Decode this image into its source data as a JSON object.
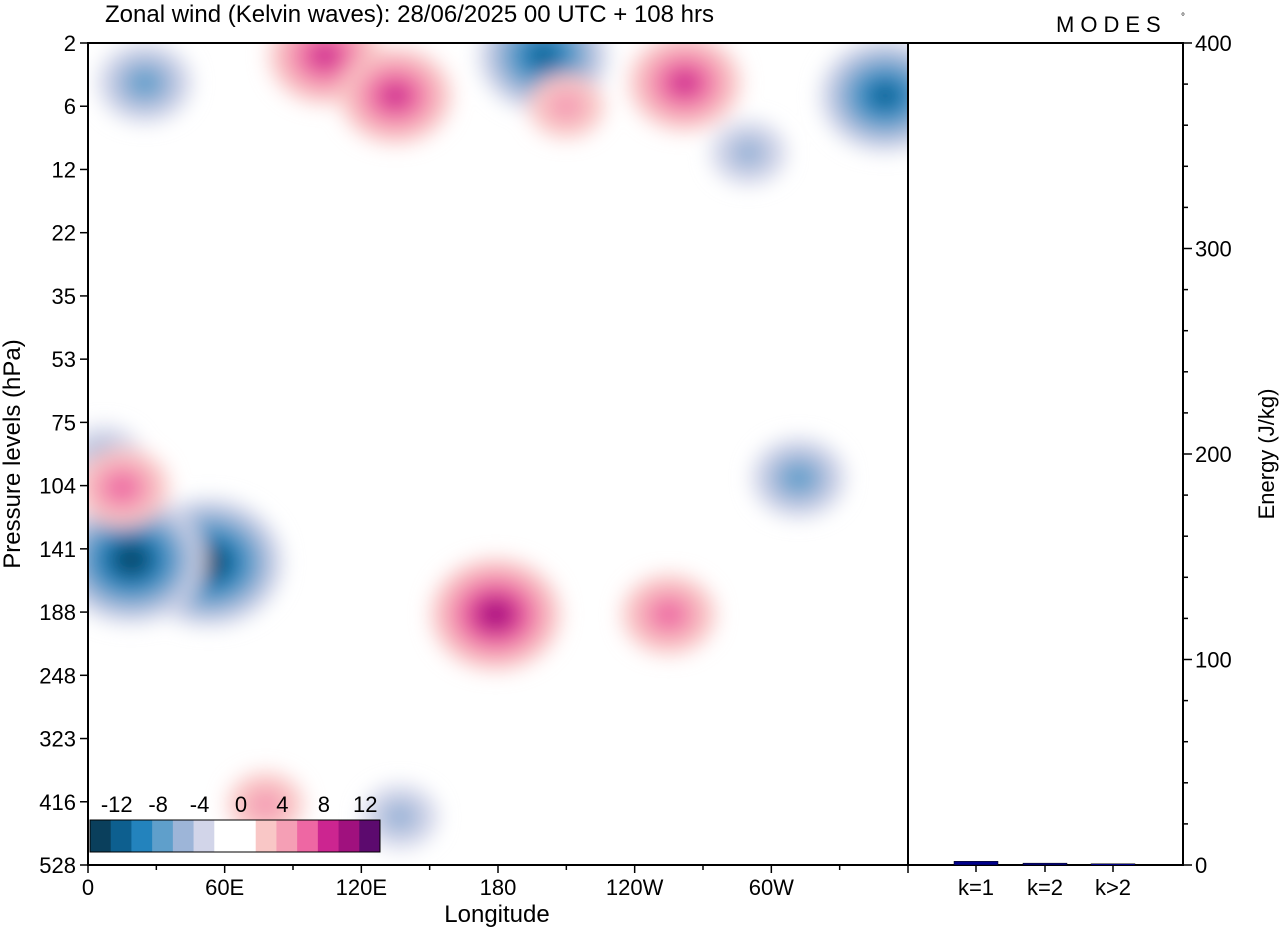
{
  "chart_data": [
    {
      "type": "heatmap",
      "title": "Zonal wind (Kelvin waves):  28/06/2025  00 UTC  + 108 hrs",
      "xlabel": "Longitude",
      "ylabel": "Pressure levels (hPa)",
      "x_ticks": [
        "0",
        "60E",
        "120E",
        "180",
        "120W",
        "60W"
      ],
      "y_ticks": [
        "2",
        "6",
        "12",
        "22",
        "35",
        "53",
        "75",
        "104",
        "141",
        "188",
        "248",
        "323",
        "416",
        "528"
      ],
      "colorbar": {
        "tick_labels": [
          "-12",
          "-8",
          "-4",
          "0",
          "4",
          "8",
          "12"
        ],
        "colors": [
          "#0a3f5c",
          "#0d5f8f",
          "#2383bd",
          "#5f9fcb",
          "#9db5d8",
          "#d2d5e9",
          "#ffffff",
          "#ffffff",
          "#f9c7c6",
          "#f59fb5",
          "#ee67a3",
          "#cc2590",
          "#a0117e",
          "#5c0a6e"
        ]
      },
      "features": [
        {
          "sign": "positive",
          "lon": 179,
          "p": 190,
          "peak": 10
        },
        {
          "sign": "negative",
          "lon": 53,
          "p": 150,
          "peak": -12
        },
        {
          "sign": "negative",
          "lon": 19,
          "p": 148,
          "peak": -12
        },
        {
          "sign": "positive",
          "lon": 255,
          "p": 190,
          "peak": 6
        },
        {
          "sign": "negative",
          "lon": 312,
          "p": 100,
          "peak": -6
        },
        {
          "sign": "positive",
          "lon": 78,
          "p": 420,
          "peak": 4
        },
        {
          "sign": "negative",
          "lon": 137,
          "p": 440,
          "peak": -3
        },
        {
          "sign": "negative",
          "lon": 7,
          "p": 90,
          "peak": -3
        },
        {
          "sign": "positive",
          "lon": 15,
          "p": 105,
          "peak": 5
        },
        {
          "sign": "negative",
          "lon": 200,
          "p": 2.5,
          "peak": -10
        },
        {
          "sign": "positive",
          "lon": 104,
          "p": 2.5,
          "peak": 8
        },
        {
          "sign": "positive",
          "lon": 135,
          "p": 5,
          "peak": 8
        },
        {
          "sign": "positive",
          "lon": 262,
          "p": 4,
          "peak": 8
        },
        {
          "sign": "negative",
          "lon": 350,
          "p": 5,
          "peak": -9
        },
        {
          "sign": "negative",
          "lon": 25,
          "p": 4,
          "peak": -6
        },
        {
          "sign": "positive",
          "lon": 210,
          "p": 6,
          "peak": 4
        },
        {
          "sign": "negative",
          "lon": 290,
          "p": 10,
          "peak": -4
        }
      ]
    },
    {
      "type": "bar",
      "categories": [
        "k=1",
        "k=2",
        "k>2"
      ],
      "values": [
        1.8,
        0.9,
        0.6
      ],
      "ylabel": "Energy (J/kg)",
      "ylim": [
        0,
        400
      ],
      "y_ticks": [
        "0",
        "100",
        "200",
        "300",
        "400"
      ],
      "bar_color": "#00008b"
    }
  ],
  "logo": {
    "text": "MODES",
    "mark": "°"
  }
}
